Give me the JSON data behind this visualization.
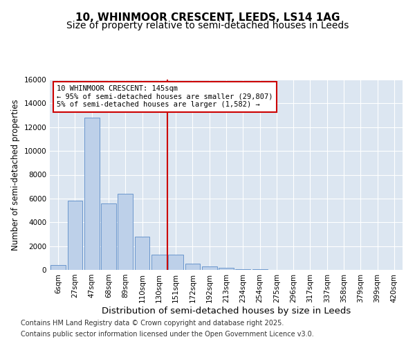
{
  "title_line1": "10, WHINMOOR CRESCENT, LEEDS, LS14 1AG",
  "title_line2": "Size of property relative to semi-detached houses in Leeds",
  "xlabel": "Distribution of semi-detached houses by size in Leeds",
  "ylabel": "Number of semi-detached properties",
  "categories": [
    "6sqm",
    "27sqm",
    "47sqm",
    "68sqm",
    "89sqm",
    "110sqm",
    "130sqm",
    "151sqm",
    "172sqm",
    "192sqm",
    "213sqm",
    "234sqm",
    "254sqm",
    "275sqm",
    "296sqm",
    "317sqm",
    "337sqm",
    "358sqm",
    "379sqm",
    "399sqm",
    "420sqm"
  ],
  "bar_values": [
    400,
    5800,
    12800,
    5600,
    6400,
    2800,
    1300,
    1300,
    500,
    300,
    200,
    80,
    30,
    10,
    5,
    3,
    2,
    1,
    0,
    0,
    0
  ],
  "bar_color": "#bdd0e9",
  "bar_edge_color": "#5b8cc8",
  "vline_x_index": 7,
  "vline_color": "#cc0000",
  "annotation_line1": "10 WHINMOOR CRESCENT: 145sqm",
  "annotation_line2": "← 95% of semi-detached houses are smaller (29,807)",
  "annotation_line3": "5% of semi-detached houses are larger (1,582) →",
  "annotation_box_color": "#cc0000",
  "annotation_box_bg": "#ffffff",
  "ylim": [
    0,
    16000
  ],
  "yticks": [
    0,
    2000,
    4000,
    6000,
    8000,
    10000,
    12000,
    14000,
    16000
  ],
  "bg_color": "#dce6f1",
  "plot_bg_color": "#dce6f1",
  "figure_bg_color": "#ffffff",
  "grid_color": "#ffffff",
  "footer_line1": "Contains HM Land Registry data © Crown copyright and database right 2025.",
  "footer_line2": "Contains public sector information licensed under the Open Government Licence v3.0.",
  "title_fontsize": 11,
  "subtitle_fontsize": 10,
  "tick_fontsize": 7.5,
  "ylabel_fontsize": 8.5,
  "xlabel_fontsize": 9.5,
  "footer_fontsize": 7
}
